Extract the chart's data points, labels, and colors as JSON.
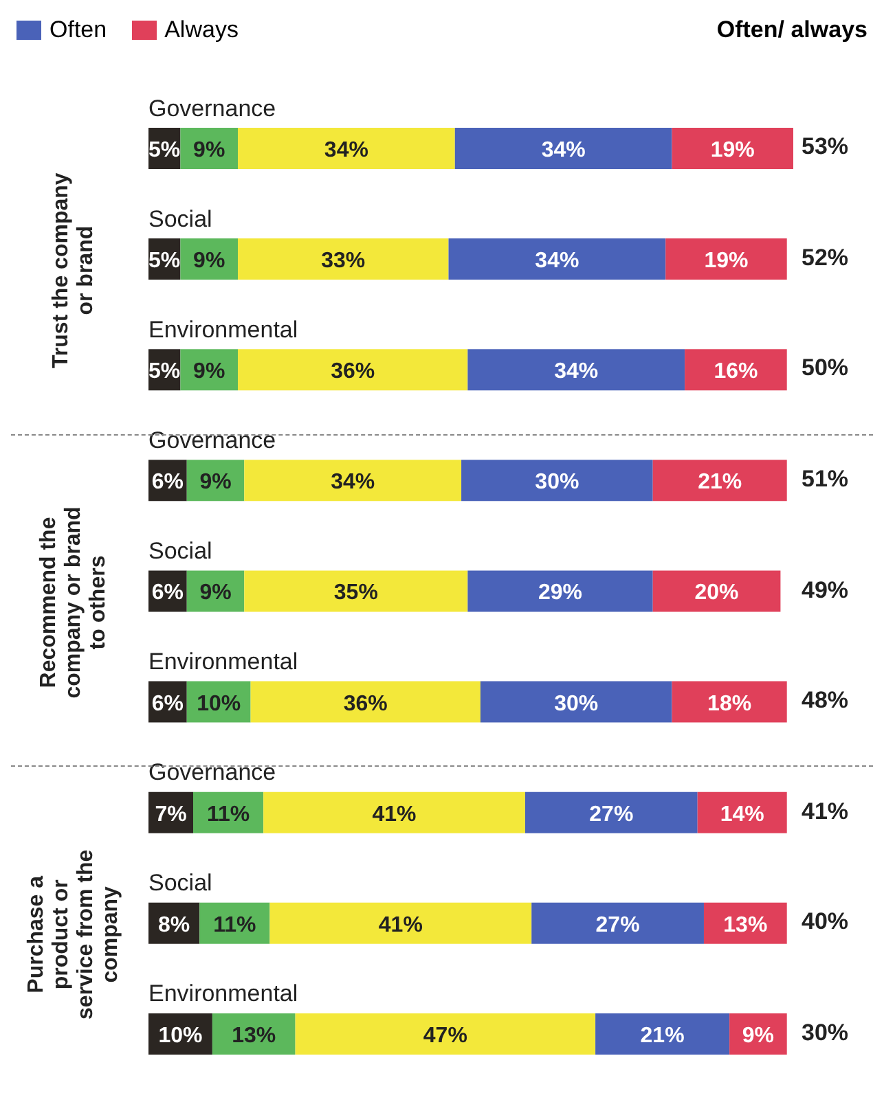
{
  "chart_data": {
    "type": "bar",
    "orientation": "horizontal",
    "stacked": true,
    "tick_labels": false,
    "legend": "top left",
    "categories": [
      "Governance",
      "Social",
      "Environmental",
      "Governance",
      "Social",
      "Environmental",
      "Governance",
      "Social",
      "Environmental"
    ],
    "series": [
      {
        "color": "#2b2622",
        "values": [
          5,
          5,
          5,
          6,
          6,
          6,
          7,
          8,
          10
        ],
        "value_labels": [
          "5%",
          "5%",
          "5%",
          "6%",
          "6%",
          "6%",
          "7%",
          "8%",
          "10%"
        ]
      },
      {
        "color": "#5cb85c",
        "values": [
          9,
          9,
          9,
          9,
          9,
          10,
          11,
          11,
          13
        ],
        "value_labels": [
          "9%",
          "9%",
          "9%",
          "9%",
          "9%",
          "10%",
          "11%",
          "11%",
          "13%"
        ]
      },
      {
        "color": "#f3e83a",
        "values": [
          34,
          33,
          36,
          34,
          35,
          36,
          41,
          41,
          47
        ],
        "value_labels": [
          "34%",
          "33%",
          "36%",
          "34%",
          "35%",
          "36%",
          "41%",
          "41%",
          "47%"
        ]
      },
      {
        "name": "Often",
        "color": "#4a62b8",
        "values": [
          34,
          34,
          34,
          30,
          29,
          30,
          27,
          27,
          21
        ],
        "value_labels": [
          "34%",
          "34%",
          "34%",
          "30%",
          "29%",
          "30%",
          "27%",
          "27%",
          "21%"
        ]
      },
      {
        "name": "Always",
        "color": "#e0405a",
        "values": [
          19,
          19,
          16,
          21,
          20,
          18,
          14,
          13,
          9
        ],
        "value_labels": [
          "19%",
          "19%",
          "16%",
          "21%",
          "20%",
          "18%",
          "14%",
          "13%",
          "9%"
        ]
      }
    ],
    "annotations": [
      "Often/ always",
      "Trust the company or brand",
      "Recommend the company or brand to others",
      "Purchase a product or service from the company",
      "53%",
      "52%",
      "50%",
      "51%",
      "49%",
      "48%",
      "41%",
      "40%",
      "30%"
    ]
  }
}
